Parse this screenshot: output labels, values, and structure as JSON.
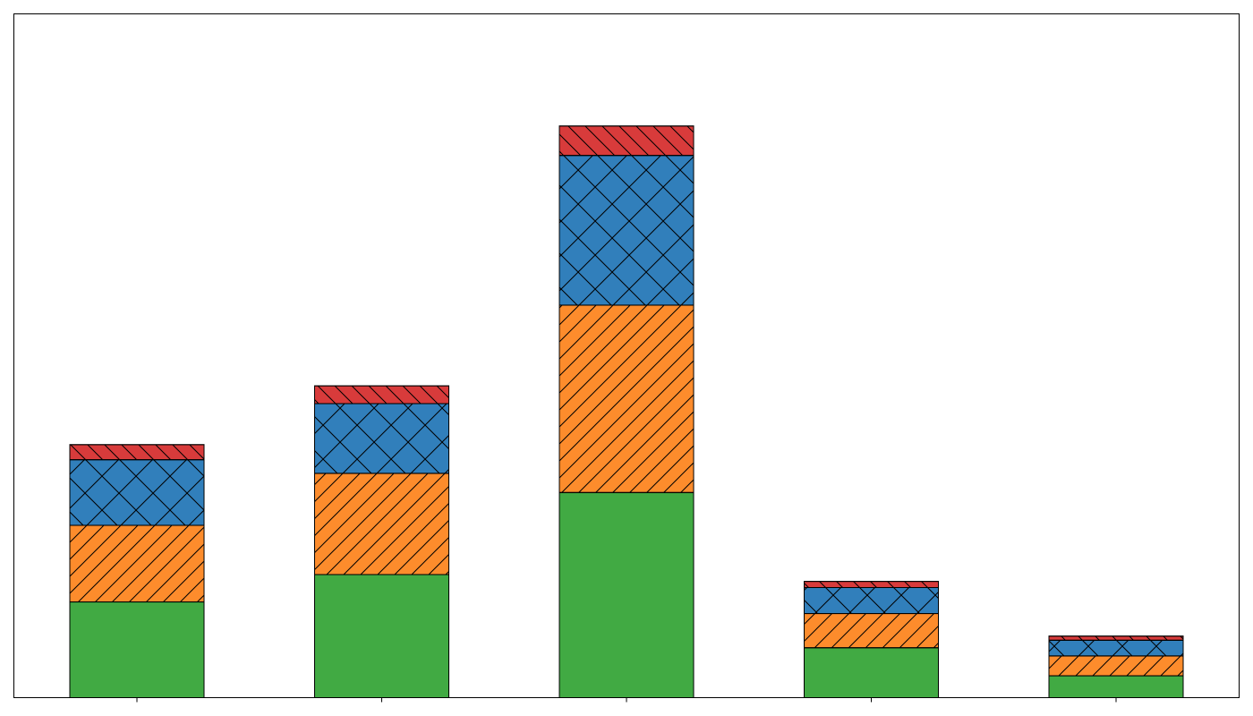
{
  "chart_data": {
    "type": "bar",
    "stacked": true,
    "title": "",
    "xlabel": "",
    "ylabel": "",
    "categories": [
      "",
      "",
      "",
      "",
      ""
    ],
    "ylim": [
      0,
      100
    ],
    "grid": false,
    "legend": "none",
    "series": [
      {
        "values": [
          14,
          18,
          30,
          7.3,
          3.2
        ],
        "color": "#41aa43",
        "hatch": "none"
      },
      {
        "values": [
          11.2,
          14.8,
          27.4,
          5,
          2.9
        ],
        "color": "#fd8c2c",
        "hatch": "diagonal"
      },
      {
        "values": [
          9.6,
          10.2,
          21.9,
          3.8,
          2.3
        ],
        "color": "#317fbb",
        "hatch": "crosshatch"
      },
      {
        "values": [
          2.2,
          2.6,
          4.3,
          0.9,
          0.6
        ],
        "color": "#d83b3b",
        "hatch": "backslash"
      }
    ]
  }
}
